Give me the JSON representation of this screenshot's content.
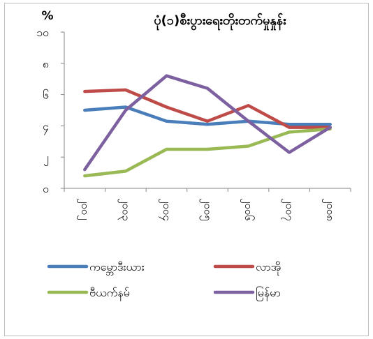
{
  "chart_data": {
    "type": "line",
    "title": "ပုံ(၁)စီးပွားရေးတိုးတက်မှုနှုန်း",
    "ylabel": "%",
    "ylim": [
      0,
      10
    ],
    "yticks": [
      {
        "value": 0,
        "label": "၀"
      },
      {
        "value": 2,
        "label": "၂"
      },
      {
        "value": 4,
        "label": "၄"
      },
      {
        "value": 6,
        "label": "၆"
      },
      {
        "value": 8,
        "label": "၈"
      },
      {
        "value": 10,
        "label": "၁၀"
      }
    ],
    "categories": [
      "၂၀၀၂",
      "၂၀၀၃",
      "၂၀၀၄",
      "၂၀၀၅",
      "၂၀၀၆",
      "၂၀၀၇",
      "၂၀၀၈"
    ],
    "series": [
      {
        "name": "ကမ္ဘောဒီးယား",
        "color": "#4a7ebb",
        "values": [
          5.0,
          5.2,
          4.3,
          4.1,
          4.3,
          4.1,
          4.1
        ]
      },
      {
        "name": "လာအို",
        "color": "#be4b48",
        "values": [
          6.2,
          6.3,
          5.2,
          4.3,
          5.3,
          3.9,
          3.9
        ]
      },
      {
        "name": "ဗီယက်နမ်",
        "color": "#98b954",
        "values": [
          0.8,
          1.1,
          2.5,
          2.5,
          2.7,
          3.6,
          3.8
        ]
      },
      {
        "name": "မြန်မာ",
        "color": "#7d60a0",
        "values": [
          1.2,
          5.0,
          7.2,
          6.4,
          4.3,
          2.3,
          3.9
        ]
      }
    ],
    "legend_position": "bottom",
    "grid": false
  }
}
